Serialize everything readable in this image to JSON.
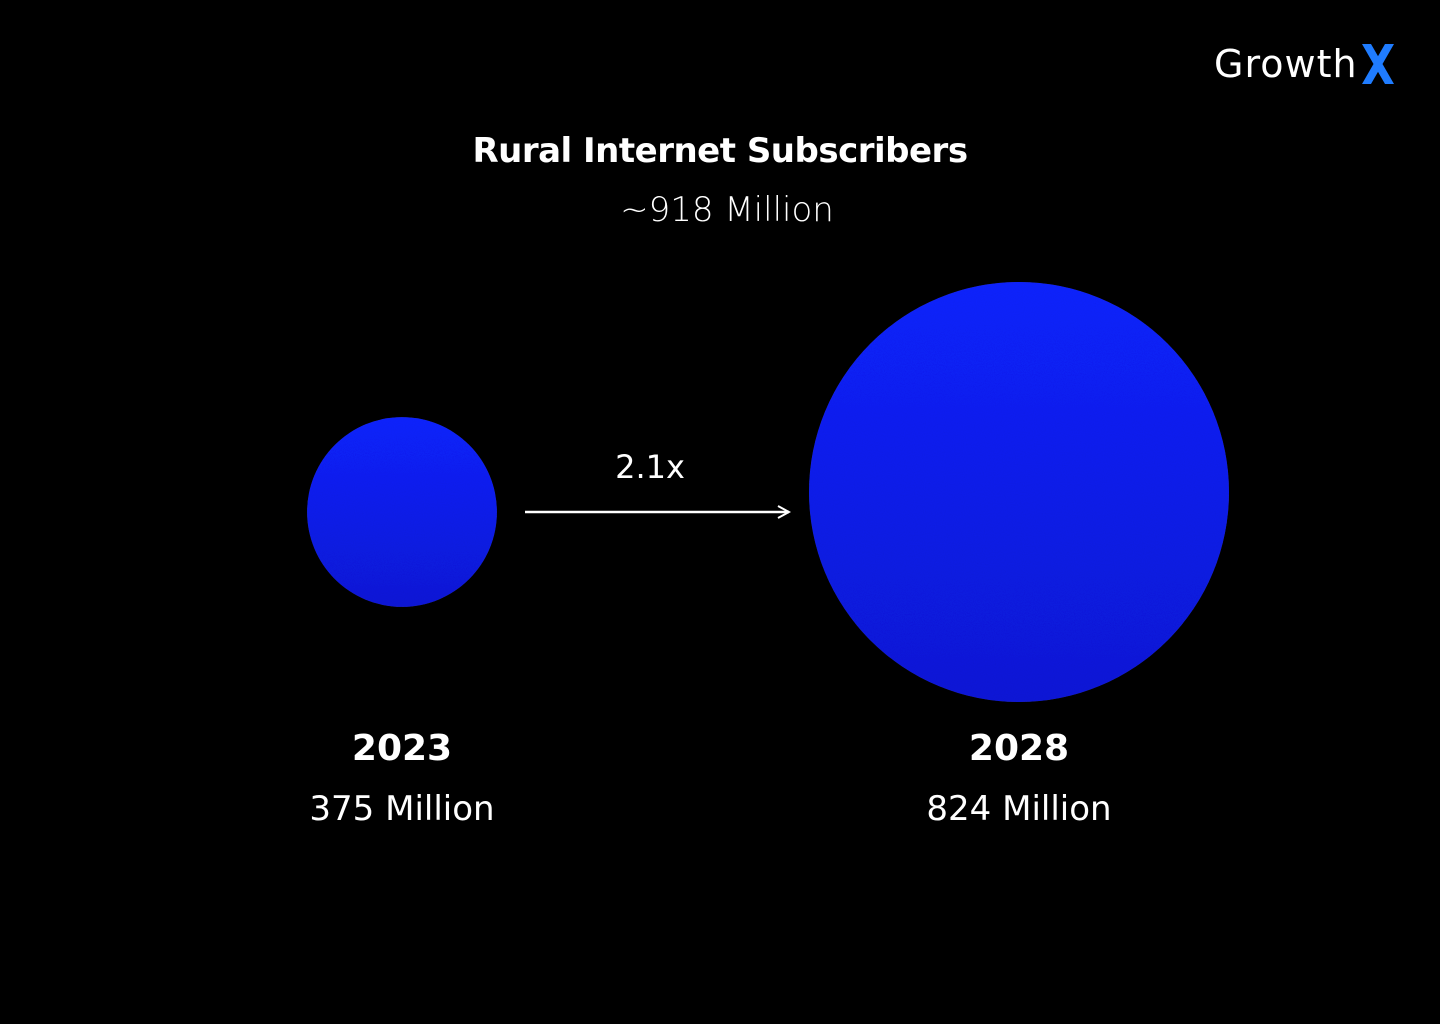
{
  "brand": {
    "name_prefix": "Growth",
    "name_suffix": "X",
    "accent_color": "#1f7cff"
  },
  "chart_data": {
    "type": "bubble",
    "title": "Rural Internet Subscribers",
    "subtitle": "~918 Million",
    "unit": "Million",
    "bubble_color": "#0a22ff",
    "multiplier_label": "2.1x",
    "categories": [
      "2023",
      "2028"
    ],
    "values": [
      375,
      824
    ],
    "value_labels": [
      "375 Million",
      "824 Million"
    ]
  }
}
